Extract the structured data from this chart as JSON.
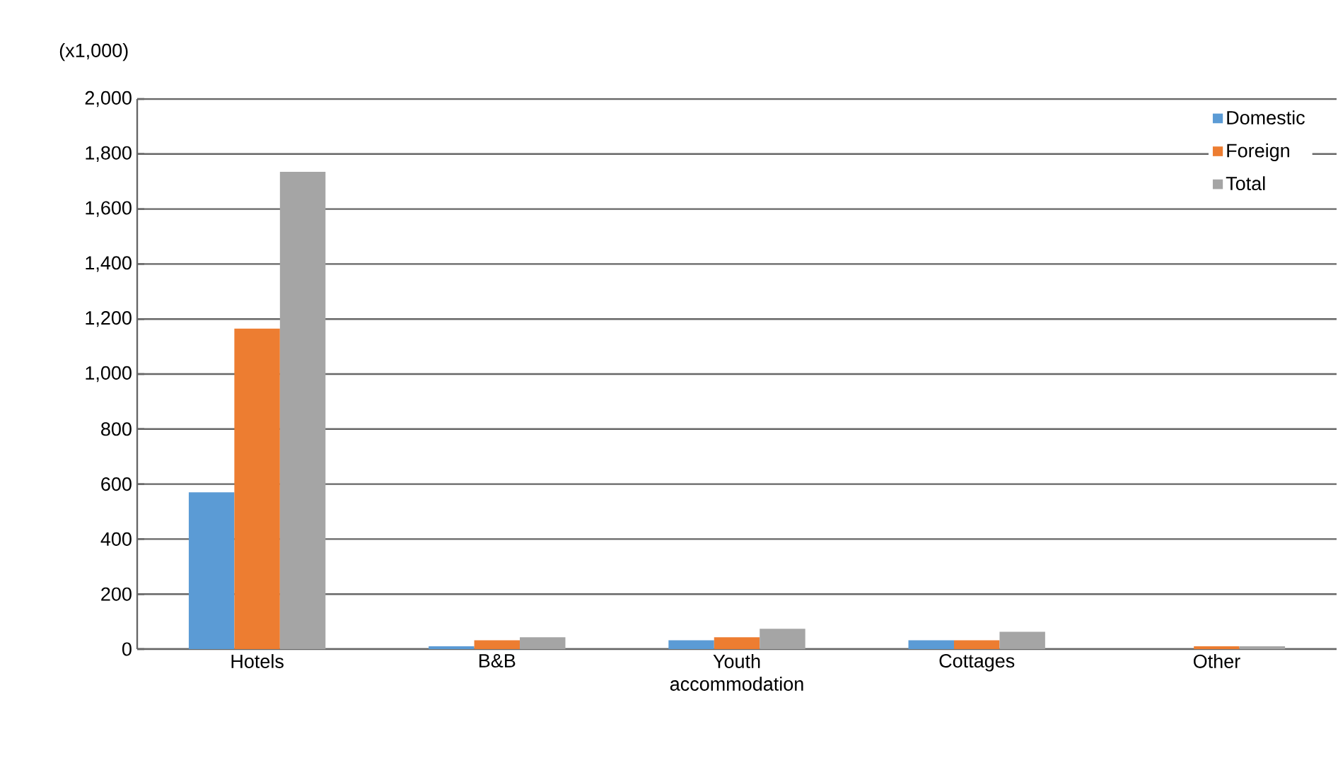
{
  "chart_data": {
    "type": "bar",
    "ylabel": "(x1,000)",
    "categories": [
      "Hotels",
      "B&B",
      "Youth accommodation",
      "Cottages",
      "Other"
    ],
    "series": [
      {
        "name": "Domestic",
        "color": "#5b9bd5",
        "values": [
          570,
          10,
          32,
          32,
          0
        ]
      },
      {
        "name": "Foreign",
        "color": "#ed7d31",
        "values": [
          1165,
          32,
          43,
          32,
          10
        ]
      },
      {
        "name": "Total",
        "color": "#a5a5a5",
        "values": [
          1735,
          43,
          74,
          63,
          10
        ]
      }
    ],
    "ylim": [
      0,
      2000
    ],
    "yticks": [
      {
        "value": 0,
        "label": "0"
      },
      {
        "value": 200,
        "label": "200"
      },
      {
        "value": 400,
        "label": "400"
      },
      {
        "value": 600,
        "label": "600"
      },
      {
        "value": 800,
        "label": "800"
      },
      {
        "value": 1000,
        "label": "1,000"
      },
      {
        "value": 1200,
        "label": "1,200"
      },
      {
        "value": 1400,
        "label": "1,400"
      },
      {
        "value": 1600,
        "label": "1,600"
      },
      {
        "value": 1800,
        "label": "1,800"
      },
      {
        "value": 2000,
        "label": "2,000"
      }
    ],
    "grid": "y",
    "legend": "top right"
  }
}
